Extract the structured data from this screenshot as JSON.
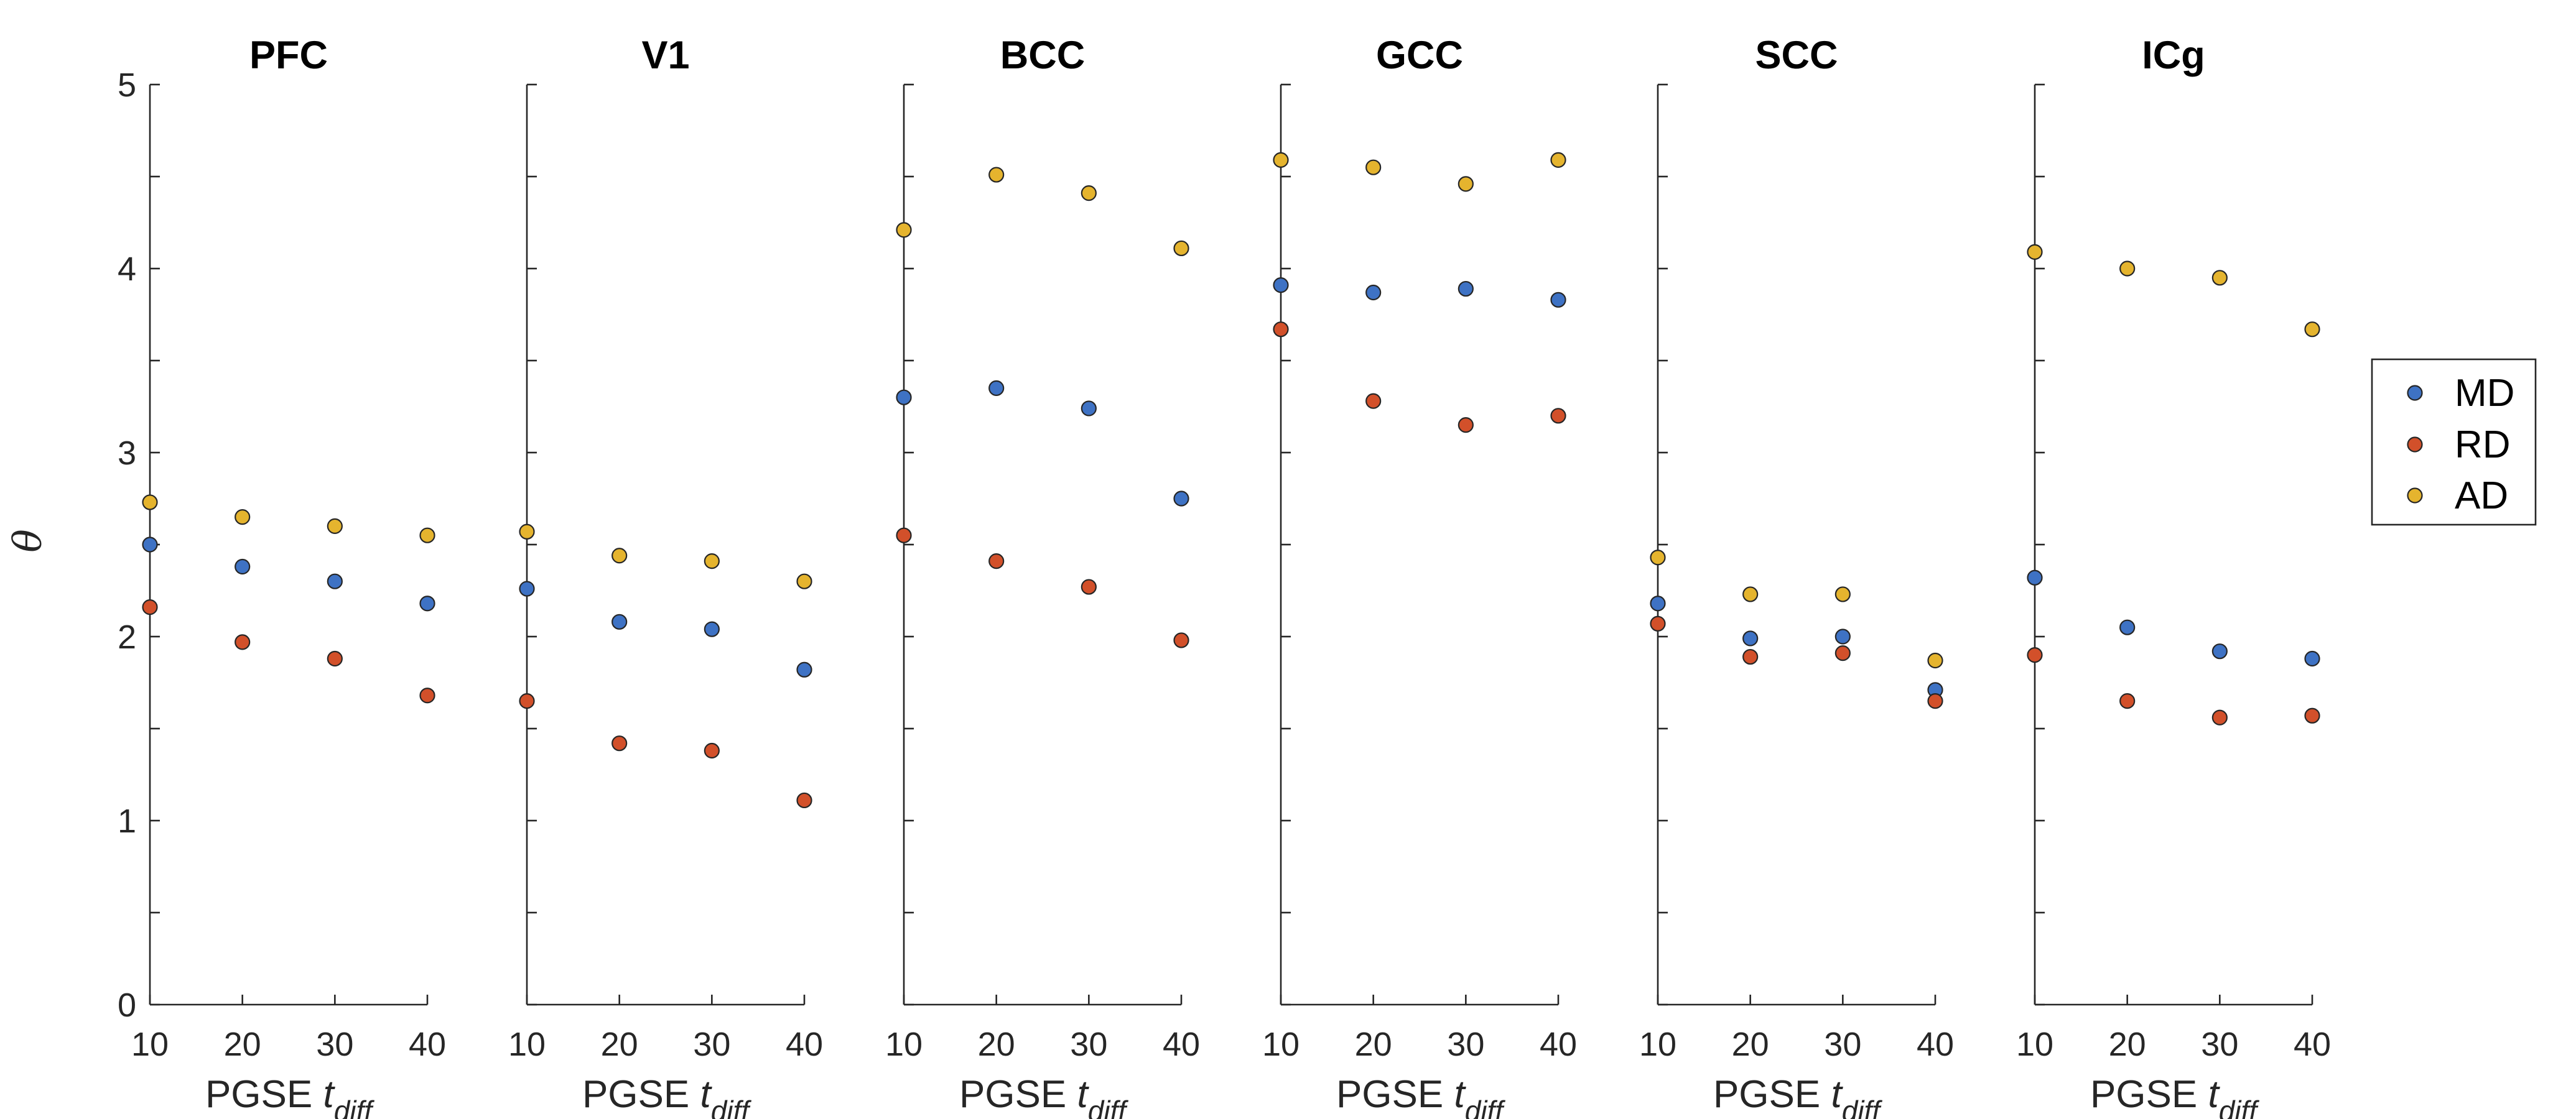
{
  "chart_data": {
    "type": "scatter",
    "ylabel": "θ",
    "ylim": [
      0,
      5
    ],
    "yticks": [
      0,
      1,
      2,
      3,
      4,
      5
    ],
    "x": [
      10,
      20,
      30,
      40
    ],
    "xlim": [
      10,
      40
    ],
    "xlabel_prefix": "PGSE",
    "xlabel_var": "t",
    "xlabel_sub": "diff",
    "legend": {
      "location": "right",
      "entries": [
        {
          "name": "MD",
          "color": "#3E72C4"
        },
        {
          "name": "RD",
          "color": "#D2502A"
        },
        {
          "name": "AD",
          "color": "#E5B42E"
        }
      ]
    },
    "panels": [
      {
        "title": "PFC",
        "series": {
          "MD": [
            2.5,
            2.38,
            2.3,
            2.18
          ],
          "RD": [
            2.16,
            1.97,
            1.88,
            1.68
          ],
          "AD": [
            2.73,
            2.65,
            2.6,
            2.55
          ]
        }
      },
      {
        "title": "V1",
        "series": {
          "MD": [
            2.26,
            2.08,
            2.04,
            1.82
          ],
          "RD": [
            1.65,
            1.42,
            1.38,
            1.11
          ],
          "AD": [
            2.57,
            2.44,
            2.41,
            2.3
          ]
        }
      },
      {
        "title": "BCC",
        "series": {
          "MD": [
            3.3,
            3.35,
            3.24,
            2.75
          ],
          "RD": [
            2.55,
            2.41,
            2.27,
            1.98
          ],
          "AD": [
            4.21,
            4.51,
            4.41,
            4.11
          ]
        }
      },
      {
        "title": "GCC",
        "series": {
          "MD": [
            3.91,
            3.87,
            3.89,
            3.83
          ],
          "RD": [
            3.67,
            3.28,
            3.15,
            3.2
          ],
          "AD": [
            4.59,
            4.55,
            4.46,
            4.59
          ]
        }
      },
      {
        "title": "SCC",
        "series": {
          "MD": [
            2.18,
            1.99,
            2.0,
            1.71
          ],
          "RD": [
            2.07,
            1.89,
            1.91,
            1.65
          ],
          "AD": [
            2.43,
            2.23,
            2.23,
            1.87
          ]
        }
      },
      {
        "title": "ICg",
        "series": {
          "MD": [
            2.32,
            2.05,
            1.92,
            1.88
          ],
          "RD": [
            1.9,
            1.65,
            1.56,
            1.57
          ],
          "AD": [
            4.09,
            4.0,
            3.95,
            3.67
          ]
        }
      }
    ]
  }
}
